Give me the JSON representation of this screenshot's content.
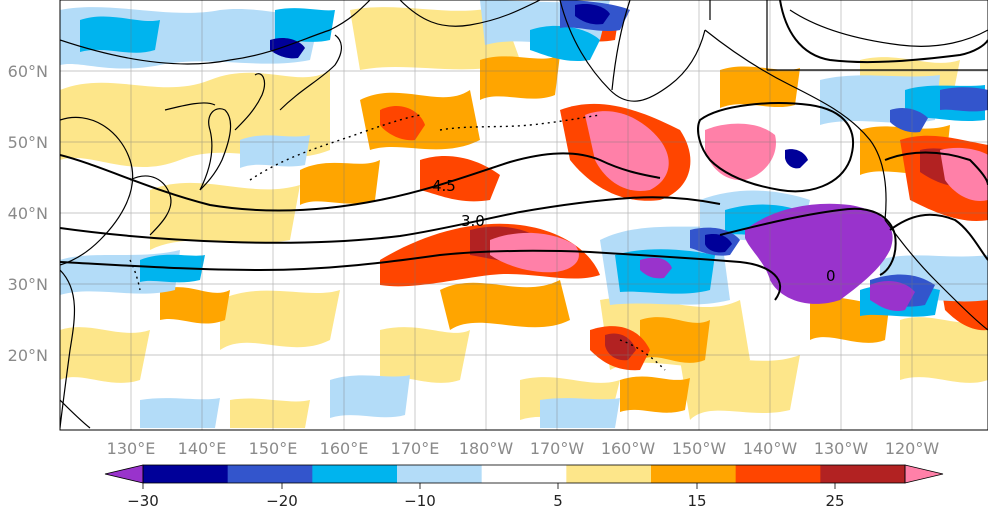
{
  "map": {
    "lat_labels": [
      "60°N",
      "50°N",
      "40°N",
      "30°N",
      "20°N"
    ],
    "lon_labels": [
      "130°E",
      "140°E",
      "150°E",
      "160°E",
      "170°E",
      "180°W",
      "170°W",
      "160°W",
      "150°W",
      "140°W",
      "130°W",
      "120°W"
    ],
    "contour_labels": [
      "4.5",
      "3.0",
      "0"
    ]
  },
  "colorbar": {
    "tick_labels": [
      "−30",
      "−20",
      "−10",
      "5",
      "15",
      "25"
    ],
    "colors": [
      "#9933cc",
      "#000099",
      "#3355cc",
      "#00b4ee",
      "#b3dcf8",
      "#ffffff",
      "#fde68a",
      "#ffa500",
      "#ff4500",
      "#b22222",
      "#ff80a8"
    ]
  }
}
